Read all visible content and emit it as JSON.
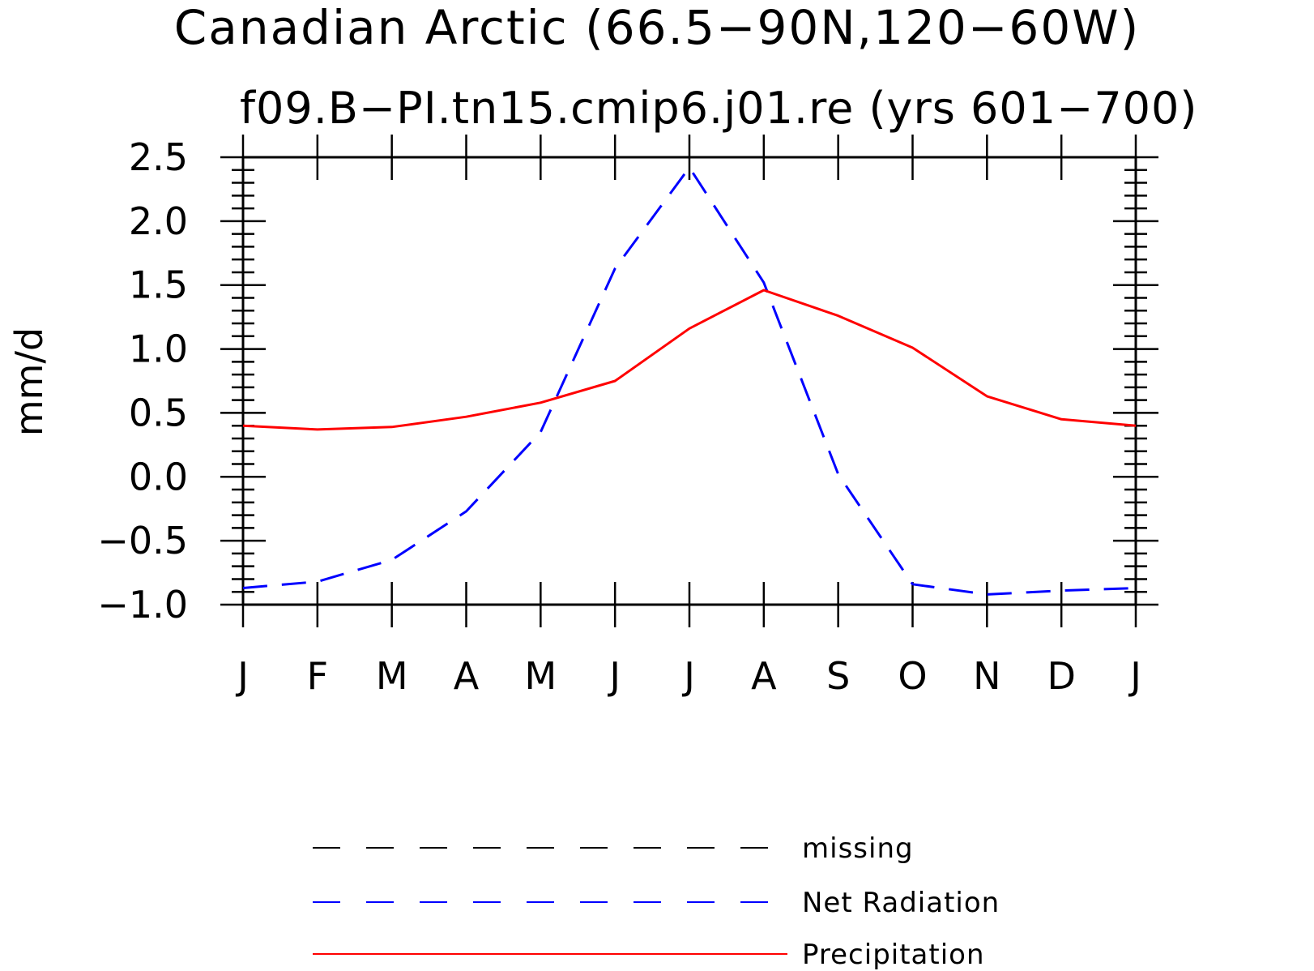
{
  "chart_data": {
    "type": "line",
    "title": "Canadian Arctic (66.5−90N,120−60W)",
    "subtitle": "f09.B−PI.tn15.cmip6.j01.re (yrs 601−700)",
    "ylabel": "mm/d",
    "xlabel": "",
    "categories": [
      "J",
      "F",
      "M",
      "A",
      "M",
      "J",
      "J",
      "A",
      "S",
      "O",
      "N",
      "D",
      "J"
    ],
    "ylim": [
      -1.0,
      2.5
    ],
    "y_ticks": [
      {
        "value": -1.0,
        "label": "−1.0"
      },
      {
        "value": -0.5,
        "label": "−0.5"
      },
      {
        "value": 0.0,
        "label": "0.0"
      },
      {
        "value": 0.5,
        "label": "0.5"
      },
      {
        "value": 1.0,
        "label": "1.0"
      },
      {
        "value": 1.5,
        "label": "1.5"
      },
      {
        "value": 2.0,
        "label": "2.0"
      },
      {
        "value": 2.5,
        "label": "2.5"
      }
    ],
    "series": [
      {
        "name": "Net Radiation",
        "color": "#0000ff",
        "dash": "dashed",
        "values": [
          -0.87,
          -0.82,
          -0.65,
          -0.27,
          0.35,
          1.63,
          2.42,
          1.52,
          0.02,
          -0.84,
          -0.92,
          -0.89,
          -0.87
        ]
      },
      {
        "name": "Precipitation",
        "color": "#ff0000",
        "dash": "solid",
        "values": [
          0.4,
          0.37,
          0.39,
          0.47,
          0.58,
          0.75,
          1.16,
          1.46,
          1.26,
          1.01,
          0.63,
          0.45,
          0.4
        ]
      }
    ],
    "legend": {
      "placement": "bottom",
      "entries": [
        {
          "label": "missing",
          "color": "#000000",
          "dash": "dashed"
        },
        {
          "label": "Net Radiation",
          "color": "#0000ff",
          "dash": "dashed"
        },
        {
          "label": "Precipitation",
          "color": "#ff0000",
          "dash": "solid"
        }
      ]
    },
    "grid": false
  }
}
